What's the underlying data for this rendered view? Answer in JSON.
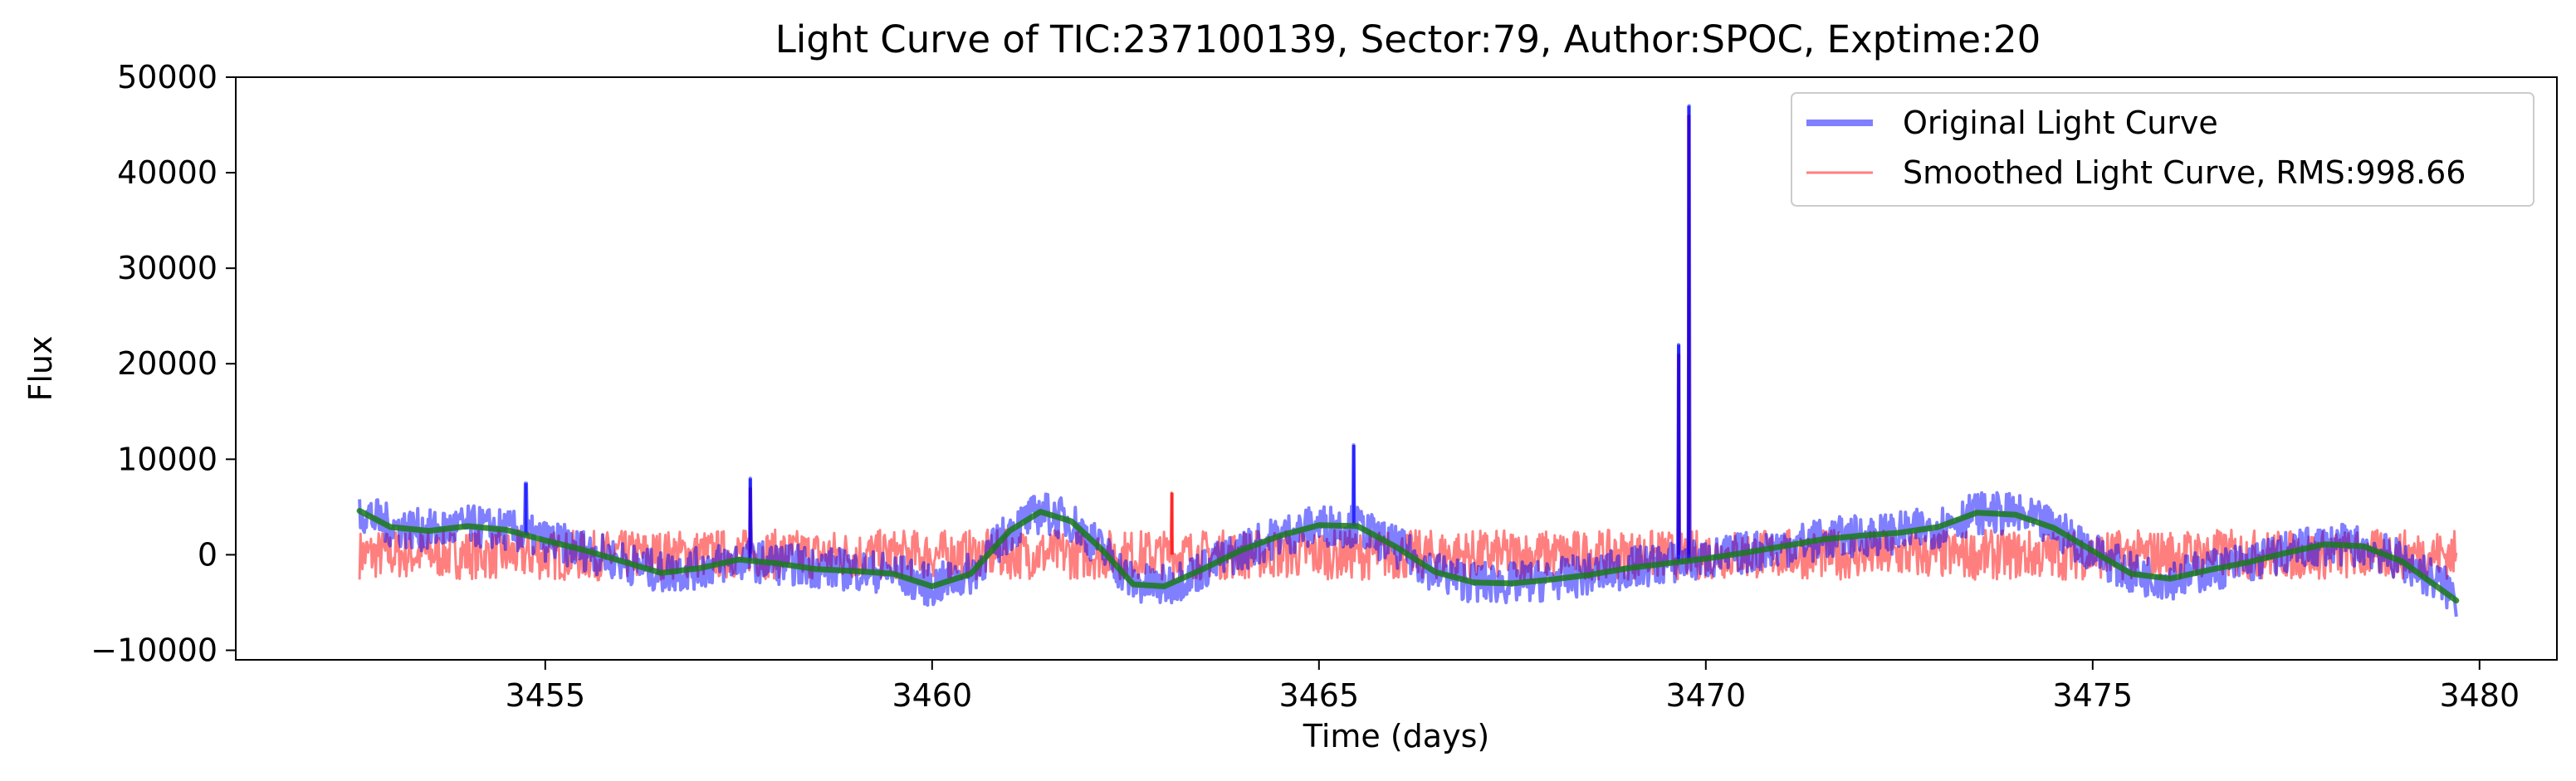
{
  "chart_data": {
    "type": "line",
    "title": "Light Curve of TIC:237100139, Sector:79, Author:SPOC, Exptime:20",
    "xlabel": "Time (days)",
    "ylabel": "Flux",
    "xlim": [
      3451.0,
      3481.0
    ],
    "ylim": [
      -11000,
      50000
    ],
    "xticks": [
      3455,
      3460,
      3465,
      3470,
      3475,
      3480
    ],
    "xtick_labels": [
      "3455",
      "3460",
      "3465",
      "3470",
      "3475",
      "3480"
    ],
    "yticks": [
      -10000,
      0,
      10000,
      20000,
      30000,
      40000,
      50000
    ],
    "ytick_labels": [
      "−10000",
      "0",
      "10000",
      "20000",
      "30000",
      "40000",
      "50000"
    ],
    "grid": false,
    "legend_position": "top-right",
    "series": [
      {
        "name": "Original Light Curve",
        "color": "#0000ff",
        "alpha": 0.5,
        "noise_amplitude": 2200,
        "x": [
          3452.6,
          3453.0,
          3453.5,
          3454.0,
          3454.5,
          3455.0,
          3455.5,
          3456.0,
          3456.5,
          3457.0,
          3457.5,
          3458.0,
          3458.5,
          3459.0,
          3459.2,
          3459.5,
          3460.0,
          3460.5,
          3461.0,
          3461.4,
          3461.8,
          3462.2,
          3462.6,
          3463.0,
          3463.5,
          3464.0,
          3464.5,
          3465.0,
          3465.5,
          3465.8,
          3466.0,
          3466.5,
          3467.0,
          3467.5,
          3468.0,
          3468.5,
          3469.0,
          3469.5,
          3470.0,
          3470.5,
          3471.0,
          3471.5,
          3472.0,
          3472.5,
          3473.0,
          3473.2,
          3473.5,
          3474.0,
          3474.5,
          3475.0,
          3475.5,
          3476.0,
          3476.5,
          3477.0,
          3477.5,
          3478.0,
          3478.5,
          3479.0,
          3479.5,
          3479.7
        ],
        "y": [
          4600,
          3000,
          2500,
          3000,
          2600,
          1500,
          500,
          -700,
          -1900,
          -1400,
          -500,
          -900,
          -1300,
          -1600,
          -1700,
          -1900,
          -3300,
          -2000,
          2500,
          4500,
          3500,
          500,
          -3000,
          -3300,
          -1500,
          500,
          2000,
          3100,
          3000,
          1500,
          800,
          -1800,
          -2900,
          -3000,
          -2600,
          -2100,
          -1400,
          -900,
          -500,
          200,
          900,
          1600,
          2000,
          2300,
          2900,
          3600,
          4400,
          4200,
          2800,
          400,
          -2000,
          -2500,
          -1600,
          -800,
          200,
          1100,
          900,
          -700,
          -3000,
          -4500
        ],
        "spikes": [
          {
            "x": 3454.75,
            "y": 7500
          },
          {
            "x": 3457.65,
            "y": 8000
          },
          {
            "x": 3465.45,
            "y": 11500
          },
          {
            "x": 3469.65,
            "y": 22000
          },
          {
            "x": 3469.78,
            "y": 47000
          }
        ]
      },
      {
        "name": "Smoothed Light Curve, RMS:998.66",
        "color": "#ff0000",
        "alpha": 0.5,
        "noise_amplitude": 2600,
        "x": [
          3452.6,
          3453.5,
          3454.5,
          3455.5,
          3456.5,
          3457.5,
          3458.5,
          3459.2,
          3459.5,
          3460.5,
          3461.5,
          3462.5,
          3463.5,
          3464.5,
          3465.5,
          3465.8,
          3466.0,
          3467.0,
          3468.0,
          3469.0,
          3470.0,
          3471.0,
          3472.0,
          3473.0,
          3473.2,
          3473.5,
          3474.5,
          3475.5,
          3476.5,
          3477.5,
          3478.5,
          3479.7
        ],
        "y": [
          0,
          100,
          0,
          -100,
          0,
          100,
          0,
          0,
          0,
          0,
          100,
          0,
          0,
          100,
          0,
          0,
          0,
          0,
          0,
          0,
          0,
          100,
          0,
          0,
          0,
          0,
          0,
          0,
          100,
          0,
          0,
          0
        ],
        "spikes": [
          {
            "x": 3457.65,
            "y": 7000
          },
          {
            "x": 3463.1,
            "y": 6500
          },
          {
            "x": 3469.65,
            "y": 21000
          },
          {
            "x": 3469.78,
            "y": 46000
          }
        ]
      },
      {
        "color": "#1a7a1a",
        "x": [
          3452.6,
          3453.0,
          3453.5,
          3454.0,
          3454.5,
          3455.0,
          3455.5,
          3456.0,
          3456.5,
          3457.0,
          3457.5,
          3458.0,
          3458.5,
          3459.0,
          3459.5,
          3460.0,
          3460.5,
          3461.0,
          3461.4,
          3461.8,
          3462.2,
          3462.6,
          3463.0,
          3463.5,
          3464.0,
          3464.5,
          3465.0,
          3465.5,
          3466.0,
          3466.5,
          3467.0,
          3467.5,
          3468.0,
          3468.5,
          3469.0,
          3469.5,
          3470.0,
          3470.5,
          3471.0,
          3471.5,
          3472.0,
          3472.5,
          3473.0,
          3473.5,
          3474.0,
          3474.5,
          3475.0,
          3475.5,
          3476.0,
          3476.5,
          3477.0,
          3477.5,
          3478.0,
          3478.5,
          3479.0,
          3479.7
        ],
        "y": [
          4600,
          2900,
          2500,
          3000,
          2600,
          1500,
          500,
          -700,
          -1900,
          -1400,
          -500,
          -900,
          -1500,
          -1700,
          -2000,
          -3300,
          -2000,
          2500,
          4500,
          3500,
          500,
          -3100,
          -3300,
          -1500,
          500,
          2000,
          3100,
          3000,
          800,
          -1800,
          -2900,
          -3000,
          -2600,
          -2100,
          -1400,
          -900,
          -400,
          200,
          900,
          1600,
          2000,
          2300,
          2900,
          4400,
          4200,
          2800,
          400,
          -2000,
          -2500,
          -1600,
          -800,
          200,
          1100,
          900,
          -700,
          -4800
        ]
      }
    ]
  }
}
